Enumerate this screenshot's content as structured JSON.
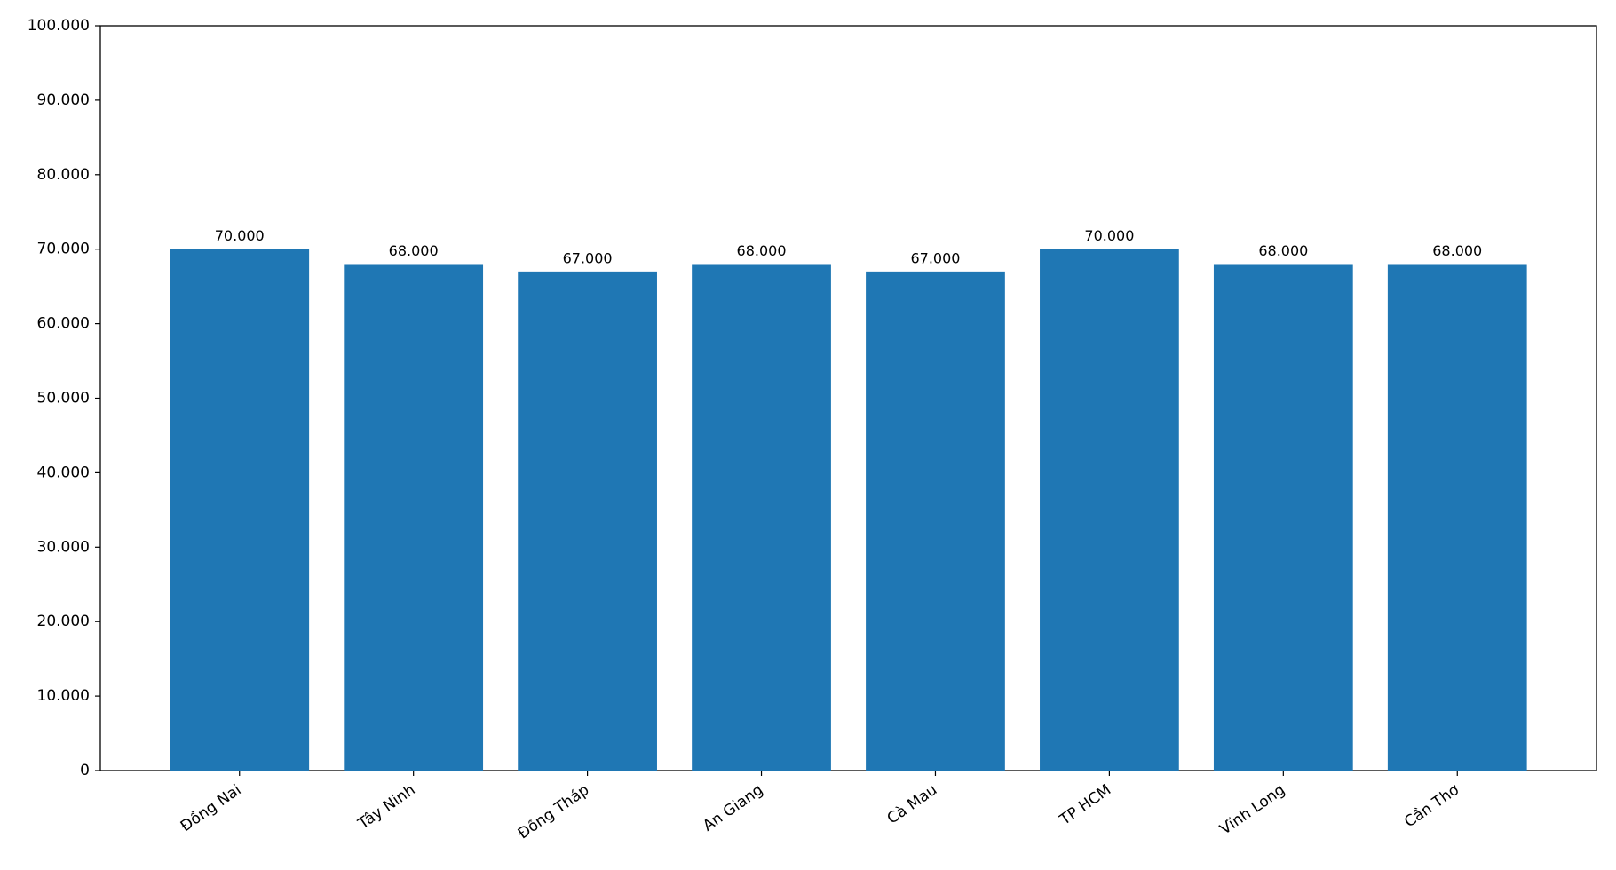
{
  "chart_data": {
    "type": "bar",
    "categories": [
      "Đồng Nai",
      "Tây Ninh",
      "Đồng Tháp",
      "An Giang",
      "Cà Mau",
      "TP HCM",
      "Vĩnh Long",
      "Cần Thơ"
    ],
    "values": [
      70000,
      68000,
      67000,
      68000,
      67000,
      70000,
      68000,
      68000
    ],
    "value_labels": [
      "70.000",
      "68.000",
      "67.000",
      "68.000",
      "67.000",
      "70.000",
      "68.000",
      "68.000"
    ],
    "color": "#1f77b4",
    "ylim": [
      0,
      100000
    ],
    "yticks": [
      0,
      {
        "value": 10000,
        "label": "10.000"
      },
      {
        "value": 20000,
        "label": "20.000"
      },
      {
        "value": 30000,
        "label": "30.000"
      },
      {
        "value": 40000,
        "label": "40.000"
      },
      {
        "value": 50000,
        "label": "50.000"
      },
      {
        "value": 60000,
        "label": "60.000"
      },
      {
        "value": 70000,
        "label": "70.000"
      },
      {
        "value": 80000,
        "label": "80.000"
      },
      {
        "value": 90000,
        "label": "90.000"
      },
      {
        "value": 100000,
        "label": "100.000"
      }
    ],
    "grid": false
  }
}
